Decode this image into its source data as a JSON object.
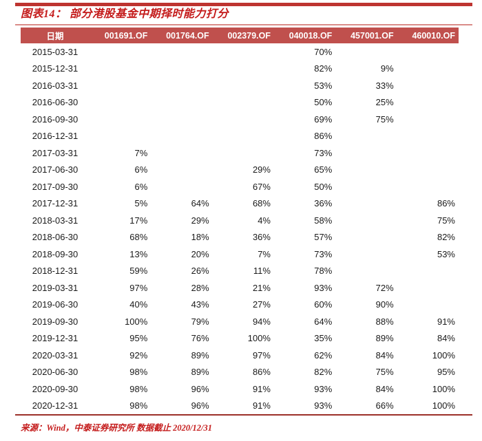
{
  "figure": {
    "title": "图表14： 部分港股基金中期择时能力打分",
    "source_note": "来源：Wind，中泰证券研究所 数据截止 2020/12/31"
  },
  "table": {
    "columns": [
      "日期",
      "001691.OF",
      "001764.OF",
      "002379.OF",
      "040018.OF",
      "457001.OF",
      "460010.OF"
    ],
    "rows": [
      {
        "date": "2015-03-31",
        "values": [
          "",
          "",
          "",
          "70%",
          "",
          ""
        ]
      },
      {
        "date": "2015-12-31",
        "values": [
          "",
          "",
          "",
          "82%",
          "9%",
          ""
        ]
      },
      {
        "date": "2016-03-31",
        "values": [
          "",
          "",
          "",
          "53%",
          "33%",
          ""
        ]
      },
      {
        "date": "2016-06-30",
        "values": [
          "",
          "",
          "",
          "50%",
          "25%",
          ""
        ]
      },
      {
        "date": "2016-09-30",
        "values": [
          "",
          "",
          "",
          "69%",
          "75%",
          ""
        ]
      },
      {
        "date": "2016-12-31",
        "values": [
          "",
          "",
          "",
          "86%",
          "",
          ""
        ]
      },
      {
        "date": "2017-03-31",
        "values": [
          "7%",
          "",
          "",
          "73%",
          "",
          ""
        ]
      },
      {
        "date": "2017-06-30",
        "values": [
          "6%",
          "",
          "29%",
          "65%",
          "",
          ""
        ]
      },
      {
        "date": "2017-09-30",
        "values": [
          "6%",
          "",
          "67%",
          "50%",
          "",
          ""
        ]
      },
      {
        "date": "2017-12-31",
        "values": [
          "5%",
          "64%",
          "68%",
          "36%",
          "",
          "86%"
        ]
      },
      {
        "date": "2018-03-31",
        "values": [
          "17%",
          "29%",
          "4%",
          "58%",
          "",
          "75%"
        ]
      },
      {
        "date": "2018-06-30",
        "values": [
          "68%",
          "18%",
          "36%",
          "57%",
          "",
          "82%"
        ]
      },
      {
        "date": "2018-09-30",
        "values": [
          "13%",
          "20%",
          "7%",
          "73%",
          "",
          "53%"
        ]
      },
      {
        "date": "2018-12-31",
        "values": [
          "59%",
          "26%",
          "11%",
          "78%",
          "",
          ""
        ]
      },
      {
        "date": "2019-03-31",
        "values": [
          "97%",
          "28%",
          "21%",
          "93%",
          "72%",
          ""
        ]
      },
      {
        "date": "2019-06-30",
        "values": [
          "40%",
          "43%",
          "27%",
          "60%",
          "90%",
          ""
        ]
      },
      {
        "date": "2019-09-30",
        "values": [
          "100%",
          "79%",
          "94%",
          "64%",
          "88%",
          "91%"
        ]
      },
      {
        "date": "2019-12-31",
        "values": [
          "95%",
          "76%",
          "100%",
          "35%",
          "89%",
          "84%"
        ]
      },
      {
        "date": "2020-03-31",
        "values": [
          "92%",
          "89%",
          "97%",
          "62%",
          "84%",
          "100%"
        ]
      },
      {
        "date": "2020-06-30",
        "values": [
          "98%",
          "89%",
          "86%",
          "82%",
          "75%",
          "95%"
        ]
      },
      {
        "date": "2020-09-30",
        "values": [
          "98%",
          "96%",
          "91%",
          "93%",
          "84%",
          "100%"
        ]
      },
      {
        "date": "2020-12-31",
        "values": [
          "98%",
          "96%",
          "91%",
          "93%",
          "66%",
          "100%"
        ]
      }
    ]
  },
  "colors": {
    "accent": "#c41a1a",
    "rule_top": "#be3430",
    "rule_light": "#d98b87",
    "rule_bottom": "#9b2f28",
    "header_bg": "#c0504d",
    "header_text": "#ffffff",
    "body_text": "#1a1a1a"
  }
}
